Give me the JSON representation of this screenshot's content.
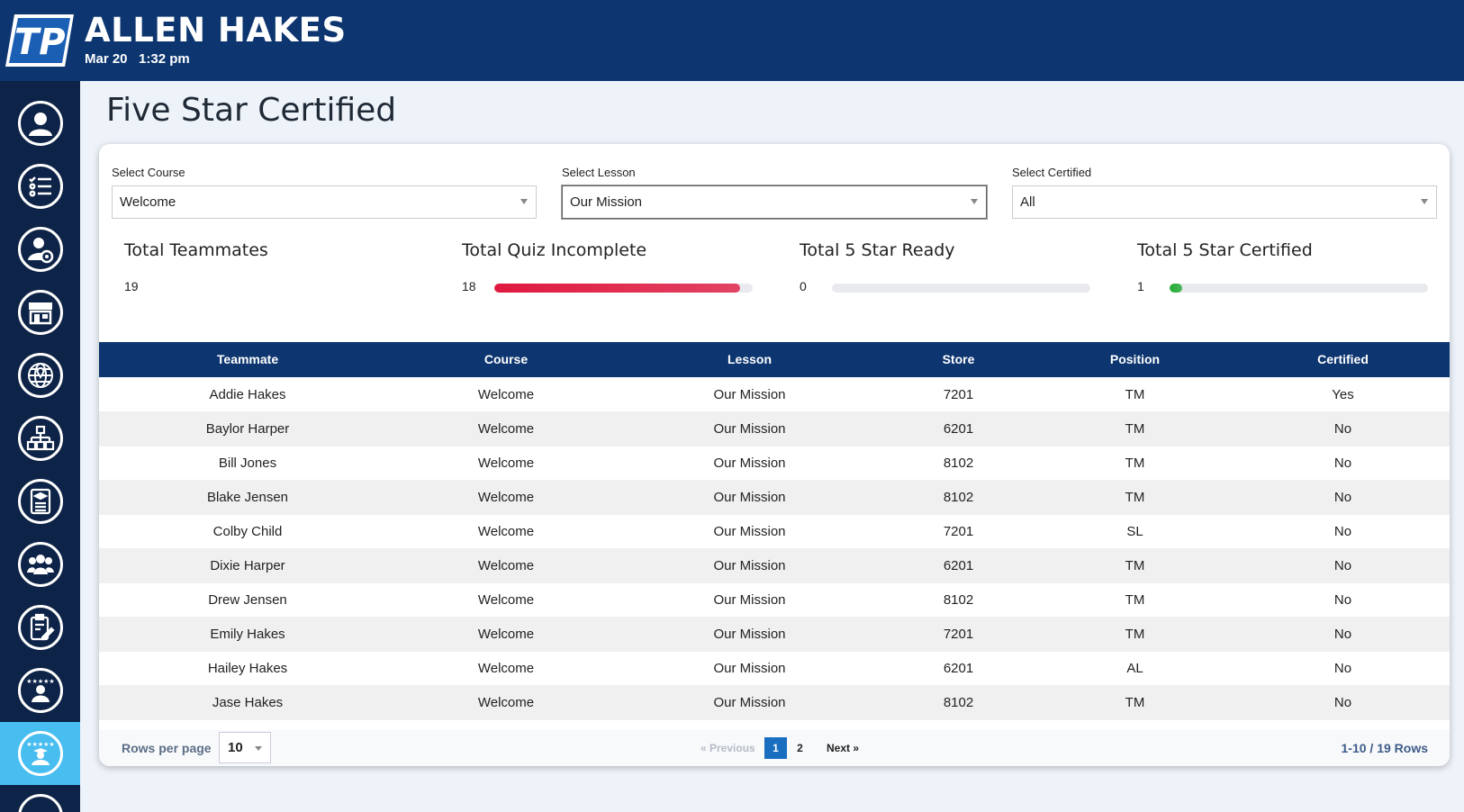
{
  "header": {
    "user_name": "ALLEN HAKES",
    "date": "Mar 20",
    "time": "1:32 pm",
    "brand_color": "#0d3670"
  },
  "sidebar": {
    "items": [
      {
        "icon": "user-profile-icon"
      },
      {
        "icon": "checklist-icon"
      },
      {
        "icon": "user-settings-icon"
      },
      {
        "icon": "store-icon"
      },
      {
        "icon": "globe-location-icon"
      },
      {
        "icon": "org-chart-icon"
      },
      {
        "icon": "course-document-icon"
      },
      {
        "icon": "team-icon"
      },
      {
        "icon": "clipboard-edit-icon"
      },
      {
        "icon": "star-rating-user-icon"
      },
      {
        "icon": "five-star-graduate-icon",
        "active": true
      }
    ],
    "active_color": "#47bdf0"
  },
  "page": {
    "title": "Five Star Certified"
  },
  "filters": {
    "course": {
      "label": "Select Course",
      "value": "Welcome"
    },
    "lesson": {
      "label": "Select Lesson",
      "value": "Our Mission"
    },
    "certified": {
      "label": "Select Certified",
      "value": "All"
    }
  },
  "stats": {
    "teammates": {
      "title": "Total Teammates",
      "value": "19"
    },
    "quiz_incomplete": {
      "title": "Total Quiz Incomplete",
      "value": "18",
      "progress": 0.95,
      "color": "#e0193f"
    },
    "ready": {
      "title": "Total 5 Star Ready",
      "value": "0",
      "progress": 0,
      "color": "#22aa33"
    },
    "certified": {
      "title": "Total 5 Star Certified",
      "value": "1",
      "progress": 0.05,
      "color": "#22aa33"
    }
  },
  "table": {
    "columns": [
      "Teammate",
      "Course",
      "Lesson",
      "Store",
      "Position",
      "Certified"
    ],
    "rows": [
      [
        "Addie Hakes",
        "Welcome",
        "Our Mission",
        "7201",
        "TM",
        "Yes"
      ],
      [
        "Baylor Harper",
        "Welcome",
        "Our Mission",
        "6201",
        "TM",
        "No"
      ],
      [
        "Bill Jones",
        "Welcome",
        "Our Mission",
        "8102",
        "TM",
        "No"
      ],
      [
        "Blake Jensen",
        "Welcome",
        "Our Mission",
        "8102",
        "TM",
        "No"
      ],
      [
        "Colby Child",
        "Welcome",
        "Our Mission",
        "7201",
        "SL",
        "No"
      ],
      [
        "Dixie Harper",
        "Welcome",
        "Our Mission",
        "6201",
        "TM",
        "No"
      ],
      [
        "Drew Jensen",
        "Welcome",
        "Our Mission",
        "8102",
        "TM",
        "No"
      ],
      [
        "Emily Hakes",
        "Welcome",
        "Our Mission",
        "7201",
        "TM",
        "No"
      ],
      [
        "Hailey Hakes",
        "Welcome",
        "Our Mission",
        "6201",
        "AL",
        "No"
      ],
      [
        "Jase Hakes",
        "Welcome",
        "Our Mission",
        "8102",
        "TM",
        "No"
      ]
    ]
  },
  "pagination": {
    "rows_per_page_label": "Rows per page",
    "rows_per_page": "10",
    "previous": "« Previous",
    "pages": [
      "1",
      "2"
    ],
    "current_page": "1",
    "next": "Next »",
    "row_count": "1-10 / 19 Rows"
  }
}
